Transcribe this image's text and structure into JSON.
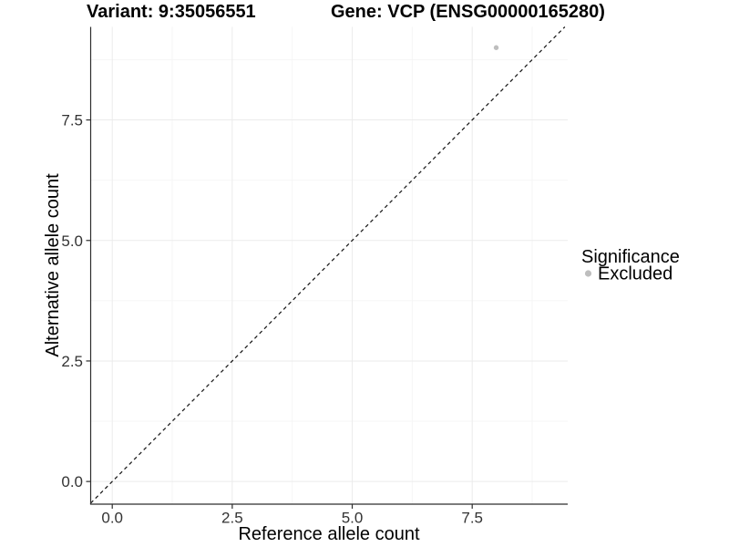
{
  "header": {
    "variant_title": "Variant: 9:35056551",
    "gene_title": "Gene: VCP (ENSG00000165280)"
  },
  "chart_data": {
    "type": "scatter",
    "xlabel": "Reference allele count",
    "ylabel": "Alternative allele count",
    "xlim": [
      -0.45,
      9.49
    ],
    "ylim": [
      -0.47,
      9.43
    ],
    "x_ticks": {
      "values": [
        0,
        2.5,
        5,
        7.5
      ],
      "labels": [
        "0.0",
        "2.5",
        "5.0",
        "7.5"
      ]
    },
    "y_ticks": {
      "values": [
        0,
        2.5,
        5,
        7.5
      ],
      "labels": [
        "0.0",
        "2.5",
        "5.0",
        "7.5"
      ]
    },
    "x_minor": [
      1.25,
      3.75,
      6.25,
      8.75
    ],
    "y_minor": [
      1.25,
      3.75,
      6.25,
      8.75
    ],
    "grid": "major+minor",
    "identity_line": {
      "equation": "y = x",
      "style": "dashed",
      "color": "#1a1a1a"
    },
    "series": [
      {
        "name": "Excluded",
        "color": "#bebebe",
        "points": [
          {
            "x": 8,
            "y": 9
          }
        ]
      }
    ],
    "legend": {
      "title": "Significance",
      "position": "right"
    }
  },
  "colors": {
    "grid_major": "#ebebeb",
    "grid_minor": "#f5f5f5",
    "axis_line": "#2e2e2e",
    "background": "#ffffff"
  }
}
